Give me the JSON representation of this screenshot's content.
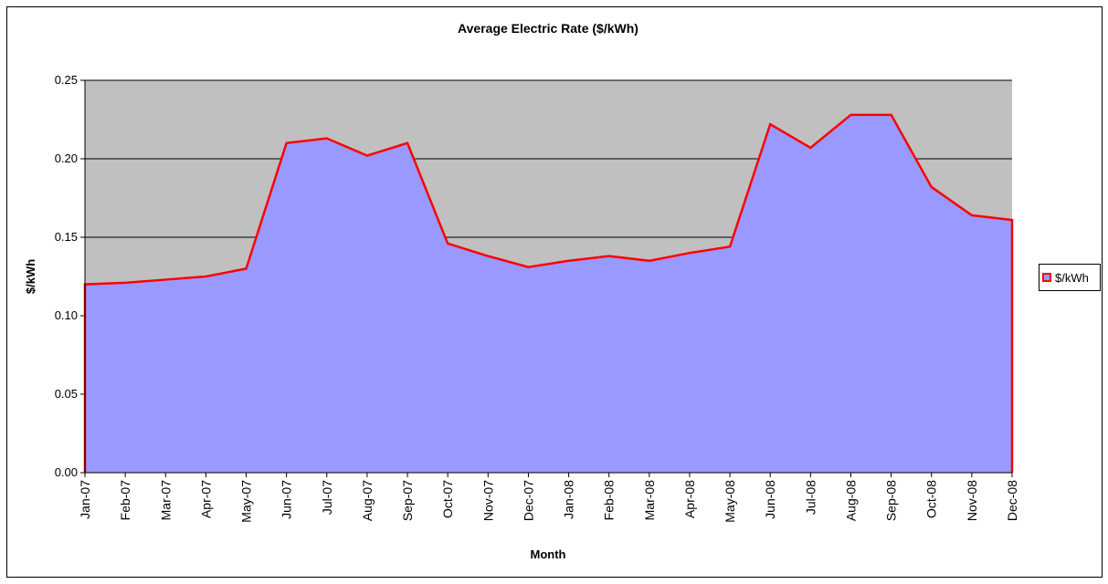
{
  "chart_data": {
    "type": "area",
    "title": "Average Electric Rate ($/kWh)",
    "x_label": "Month",
    "y_label": "$/kWh",
    "categories": [
      "Jan-07",
      "Feb-07",
      "Mar-07",
      "Apr-07",
      "May-07",
      "Jun-07",
      "Jul-07",
      "Aug-07",
      "Sep-07",
      "Oct-07",
      "Nov-07",
      "Dec-07",
      "Jan-08",
      "Feb-08",
      "Mar-08",
      "Apr-08",
      "May-08",
      "Jun-08",
      "Jul-08",
      "Aug-08",
      "Sep-08",
      "Oct-08",
      "Nov-08",
      "Dec-08"
    ],
    "series": [
      {
        "name": "$/kWh",
        "color": "#ff0000",
        "fill": "#9999ff",
        "values": [
          0.12,
          0.121,
          0.123,
          0.125,
          0.13,
          0.21,
          0.213,
          0.202,
          0.21,
          0.146,
          0.138,
          0.131,
          0.135,
          0.138,
          0.135,
          0.14,
          0.144,
          0.222,
          0.207,
          0.228,
          0.228,
          0.182,
          0.164,
          0.161
        ]
      }
    ],
    "ylim": [
      0,
      0.25
    ],
    "yticks": [
      {
        "value": 0,
        "label": "0.00"
      },
      {
        "value": 0.05,
        "label": "0.05"
      },
      {
        "value": 0.1,
        "label": "0.10"
      },
      {
        "value": 0.15,
        "label": "0.15"
      },
      {
        "value": 0.2,
        "label": "0.20"
      },
      {
        "value": 0.25,
        "label": "0.25"
      }
    ],
    "grid": true,
    "plot_background": "#c0c0c0",
    "legend": "right"
  }
}
